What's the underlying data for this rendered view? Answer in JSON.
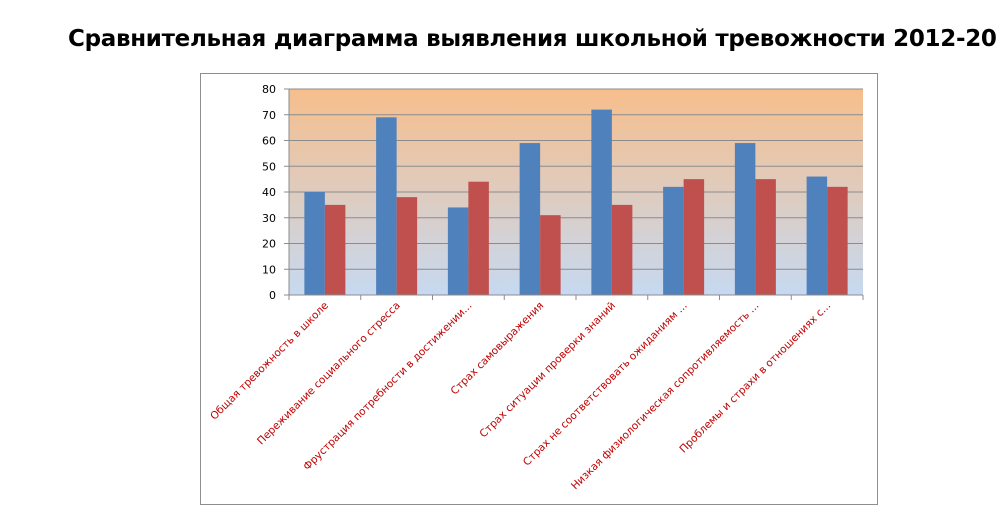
{
  "page": {
    "title": "Сравнительная  диаграмма  выявления  школьной  тревожности  2012-20"
  },
  "chart_data": {
    "type": "bar",
    "ylim": [
      0,
      80
    ],
    "yticks": [
      0,
      10,
      20,
      30,
      40,
      50,
      60,
      70,
      80
    ],
    "grid": true,
    "legend": "none",
    "categories": [
      "Общая тревожность  в школе",
      "Переживание социального  стресса",
      "Фрустрация  потребности  в достижении...",
      "Страх самовыражения",
      "Страх ситуации  проверки знаний",
      "Страх не соответствовать  ожиданиям ...",
      "Низкая физиологическая  сопротивляемость ...",
      "Проблемы и страхи  в отношениях с..."
    ],
    "series": [
      {
        "values": [
          40,
          69,
          34,
          59,
          72,
          42,
          59,
          46
        ]
      },
      {
        "values": [
          35,
          38,
          44,
          31,
          35,
          45,
          45,
          42
        ]
      }
    ],
    "colors": {
      "series": [
        "#4f81bd",
        "#c0504d"
      ],
      "category_labels": "#c00000",
      "plot_top": "#f7be8c",
      "plot_bottom": "#c6d9f1"
    }
  }
}
